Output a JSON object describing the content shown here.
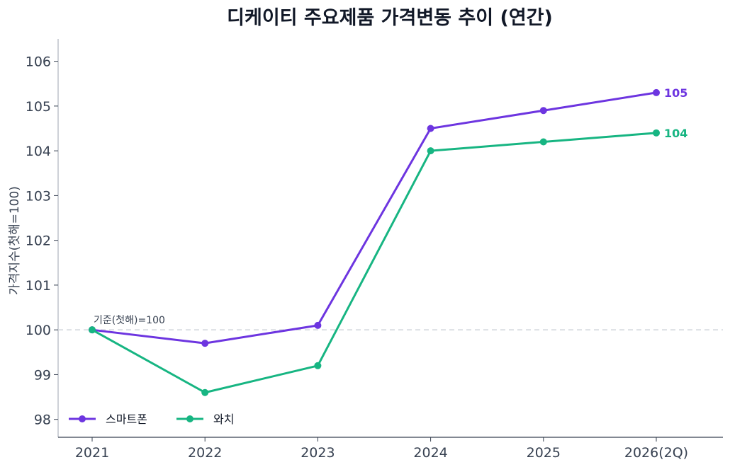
{
  "chart_data": {
    "type": "line",
    "title": "디케이티 주요제품 가격변동 추이 (연간)",
    "xlabel": "",
    "ylabel": "가격지수(첫해=100)",
    "categories": [
      "2021",
      "2022",
      "2023",
      "2024",
      "2025",
      "2026(2Q)"
    ],
    "ylim": [
      97.6,
      106.5
    ],
    "yticks": [
      98,
      99,
      100,
      101,
      102,
      103,
      104,
      105,
      106
    ],
    "series": [
      {
        "name": "스마트폰",
        "color": "#6d35e0",
        "values": [
          100,
          99.7,
          100.1,
          104.5,
          104.9,
          105.3
        ],
        "end_label": "105"
      },
      {
        "name": "와치",
        "color": "#17b582",
        "values": [
          100,
          98.6,
          99.2,
          104.0,
          104.2,
          104.4
        ],
        "end_label": "104"
      }
    ],
    "baseline": {
      "value": 100,
      "label": "기준(첫해)=100"
    },
    "grid": false,
    "legend": "bottom-left"
  }
}
